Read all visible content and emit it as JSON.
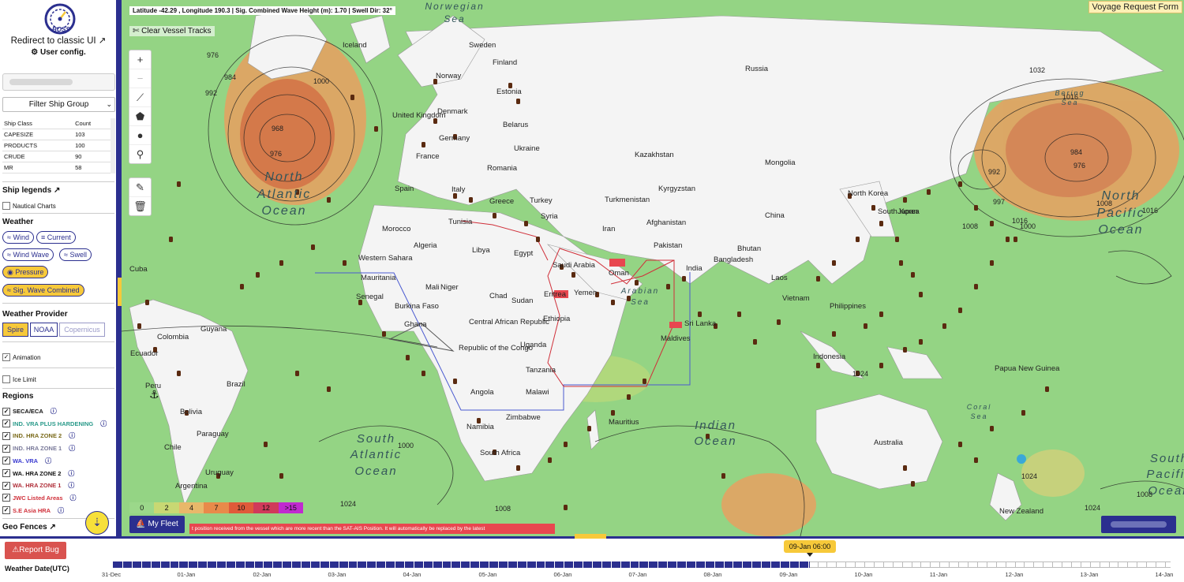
{
  "header": {
    "logo_text": "BOSS",
    "redirect_label": "Redirect to classic UI",
    "user_config_label": "User config."
  },
  "sidebar": {
    "filter_placeholder": "Filter Ship Group",
    "ship_table": {
      "headers": [
        "Ship Class",
        "Count"
      ],
      "rows": [
        [
          "CAPESIZE",
          "103"
        ],
        [
          "PRODUCTS",
          "100"
        ],
        [
          "CRUDE",
          "90"
        ],
        [
          "MR",
          "58"
        ]
      ]
    },
    "ship_legends_label": "Ship legends",
    "nautical_charts_label": "Nautical Charts",
    "weather_title": "Weather",
    "weather_buttons": [
      "Wind",
      "Current",
      "Wind Wave",
      "Swell",
      "Pressure",
      "Sig. Wave Combined"
    ],
    "weather_provider_title": "Weather Provider",
    "providers": [
      "Spire",
      "NOAA",
      "Copernicus"
    ],
    "animation_label": "Animation",
    "ice_limit_label": "Ice Limit",
    "regions_title": "Regions",
    "regions": [
      {
        "label": "SECA/ECA",
        "color": "#111111"
      },
      {
        "label": "IND. VRA PLUS HARDENING",
        "color": "#2a9a8a"
      },
      {
        "label": "IND. HRA ZONE 2",
        "color": "#7a6a1a"
      },
      {
        "label": "IND. HRA ZONE 1",
        "color": "#7a7a9a"
      },
      {
        "label": "WA. VRA",
        "color": "#3a3ad0"
      },
      {
        "label": "WA. HRA ZONE 2",
        "color": "#111111"
      },
      {
        "label": "WA. HRA ZONE 1",
        "color": "#b0303a"
      },
      {
        "label": "JWC Listed Areas",
        "color": "#d0303a"
      },
      {
        "label": "S.E Asia HRA",
        "color": "#d0303a"
      }
    ],
    "geo_fences_label": "Geo Fences"
  },
  "map": {
    "coord_readout": "Latitude -42.29 , Longitude 190.3 | Sig. Combined Wave Height (m): 1.70 | Swell Dir: 32°",
    "clear_tracks_label": "Clear Vessel Tracks",
    "voyage_request_label": "Voyage Request Form",
    "legend_values": [
      "0",
      "2",
      "4",
      "7",
      "10",
      "12",
      ">15"
    ],
    "legend_colors": [
      "#9bd88a",
      "#c8d873",
      "#e8b86a",
      "#e88a4a",
      "#e05a3a",
      "#d03a5a",
      "#c02ad0"
    ],
    "my_fleet_label": "My Fleet",
    "notice_text": "t position received from the vessel which are more recent than the SAT-AIS Position. It will automatically be replaced by the latest",
    "countries": [
      "Iceland",
      "Sweden",
      "Finland",
      "Norway",
      "Russia",
      "Estonia",
      "United Kingdom",
      "Denmark",
      "Belarus",
      "Germany",
      "Ukraine",
      "France",
      "Kazakhstan",
      "Mongolia",
      "Romania",
      "Spain",
      "Italy",
      "Kyrgyzstan",
      "Turkey",
      "Greece",
      "Turkmenistan",
      "Syria",
      "Afghanistan",
      "China",
      "Morocco",
      "Tunisia",
      "Iran",
      "Algeria",
      "Libya",
      "Egypt",
      "Pakistan",
      "Saudi Arabia",
      "Bhutan",
      "Bangladesh",
      "India",
      "Oman",
      "Laos",
      "Western Sahara",
      "Mauritania",
      "Mali",
      "Niger",
      "Yemen",
      "Chad",
      "Sudan",
      "Vietnam",
      "Senegal",
      "Burkina Faso",
      "Eritrea",
      "Philippines",
      "Ethiopia",
      "Ghana",
      "Central African Republic",
      "Sri Lanka",
      "Maldives",
      "Uganda",
      "Republic of the Congo",
      "Indonesia",
      "Papua New Guinea",
      "Tanzania",
      "Malawi",
      "Angola",
      "Zimbabwe",
      "Namibia",
      "South Africa",
      "Australia",
      "New Zealand",
      "Cuba",
      "Colombia",
      "Ecuador",
      "Guyana",
      "Peru",
      "Brazil",
      "Bolivia",
      "Paraguay",
      "Chile",
      "Uruguay",
      "Argentina",
      "North Korea",
      "South Korea",
      "Japan",
      "Mauritius"
    ],
    "oceans": [
      "North Atlantic Ocean",
      "North Pacific Ocean",
      "Indian Ocean",
      "South Atlantic Ocean",
      "South Pacific Ocean",
      "Arabian Sea",
      "Bering Sea",
      "Coral Sea",
      "Norwegian Sea"
    ],
    "isobars": [
      "976",
      "984",
      "992",
      "1000",
      "968",
      "976",
      "1032",
      "1016",
      "984",
      "976",
      "992",
      "997",
      "1000",
      "1008",
      "1008",
      "1016",
      "1016",
      "1024",
      "1000",
      "1008",
      "1024",
      "1024",
      "1008",
      "1024"
    ]
  },
  "footer": {
    "report_bug_label": "Report Bug",
    "weather_date_label": "Weather Date(UTC)",
    "current_time_label": "09-Jan 06:00",
    "timeline_dates": [
      "31-Dec",
      "01-Jan",
      "02-Jan",
      "03-Jan",
      "04-Jan",
      "05-Jan",
      "06-Jan",
      "07-Jan",
      "08-Jan",
      "09-Jan",
      "10-Jan",
      "11-Jan",
      "12-Jan",
      "13-Jan",
      "14-Jan"
    ],
    "timeline_progress_fraction": 0.61
  }
}
